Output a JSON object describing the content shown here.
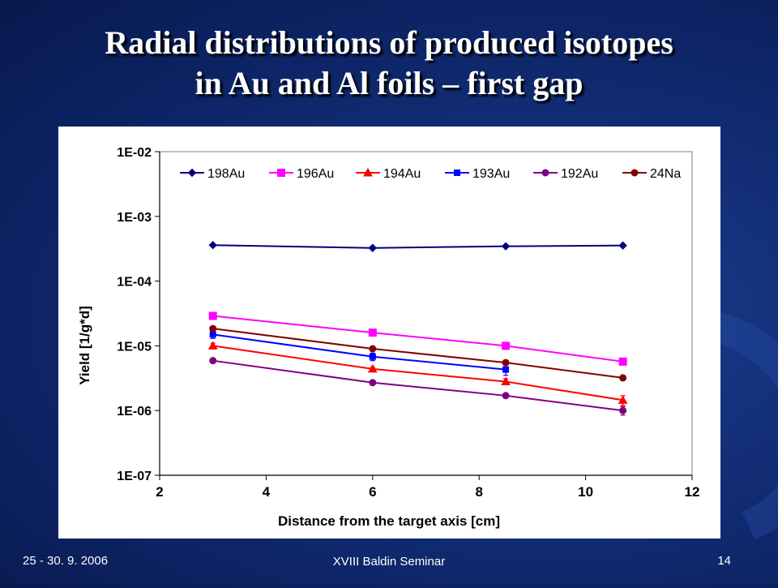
{
  "slide": {
    "title_line1": "Radial distributions of  produced isotopes",
    "title_line2": "in Au and Al foils – first gap",
    "footer_date": "25 - 30. 9. 2006",
    "footer_event": "XVIII Baldin Seminar",
    "page_number": "14"
  },
  "chart_data": {
    "type": "scatter",
    "xlabel": "Distance from the target axis [cm]",
    "ylabel": "Yield [1/g*d]",
    "xlim": [
      2,
      12
    ],
    "ylim": [
      1e-07,
      0.01
    ],
    "yscale": "log",
    "x_ticks": [
      2,
      4,
      6,
      8,
      10,
      12
    ],
    "x_tick_labels": [
      "2",
      "4",
      "6",
      "8",
      "10",
      "12"
    ],
    "y_ticks": [
      0.01,
      0.001,
      0.0001,
      1e-05,
      1e-06,
      1e-07
    ],
    "y_tick_labels": [
      "1E-02",
      "1E-03",
      "1E-04",
      "1E-05",
      "1E-06",
      "1E-07"
    ],
    "grid": false,
    "legend_position": "top",
    "series": [
      {
        "name": "198Au",
        "color": "#000080",
        "marker": "diamond",
        "x": [
          3,
          6,
          8.5,
          10.7
        ],
        "y": [
          0.00036,
          0.000325,
          0.000345,
          0.000355
        ],
        "err": [
          0,
          0,
          0,
          0
        ]
      },
      {
        "name": "196Au",
        "color": "#ff00ff",
        "marker": "square",
        "x": [
          3,
          6,
          8.5,
          10.7
        ],
        "y": [
          2.9e-05,
          1.6e-05,
          1e-05,
          5.7e-06
        ],
        "err": [
          0,
          0,
          0,
          0
        ]
      },
      {
        "name": "194Au",
        "color": "#ff0000",
        "marker": "triangle",
        "x": [
          3,
          6,
          8.5,
          10.7
        ],
        "y": [
          1e-05,
          4.4e-06,
          2.8e-06,
          1.45e-06
        ],
        "err": [
          1e-06,
          3e-07,
          3e-07,
          2.5e-07
        ]
      },
      {
        "name": "193Au",
        "color": "#0000ff",
        "marker": "square-small",
        "x": [
          3,
          6,
          8.5
        ],
        "y": [
          1.5e-05,
          6.8e-06,
          4.3e-06
        ],
        "err": [
          2e-06,
          9e-07,
          8e-07
        ]
      },
      {
        "name": "192Au",
        "color": "#800080",
        "marker": "circle",
        "x": [
          3,
          6,
          8.5,
          10.7
        ],
        "y": [
          5.9e-06,
          2.7e-06,
          1.7e-06,
          1e-06
        ],
        "err": [
          0,
          0,
          0,
          1.5e-07
        ]
      },
      {
        "name": "24Na",
        "color": "#800000",
        "marker": "circle",
        "x": [
          3,
          6,
          8.5,
          10.7
        ],
        "y": [
          1.85e-05,
          9e-06,
          5.5e-06,
          3.2e-06
        ],
        "err": [
          0,
          0,
          0,
          0
        ]
      }
    ]
  }
}
